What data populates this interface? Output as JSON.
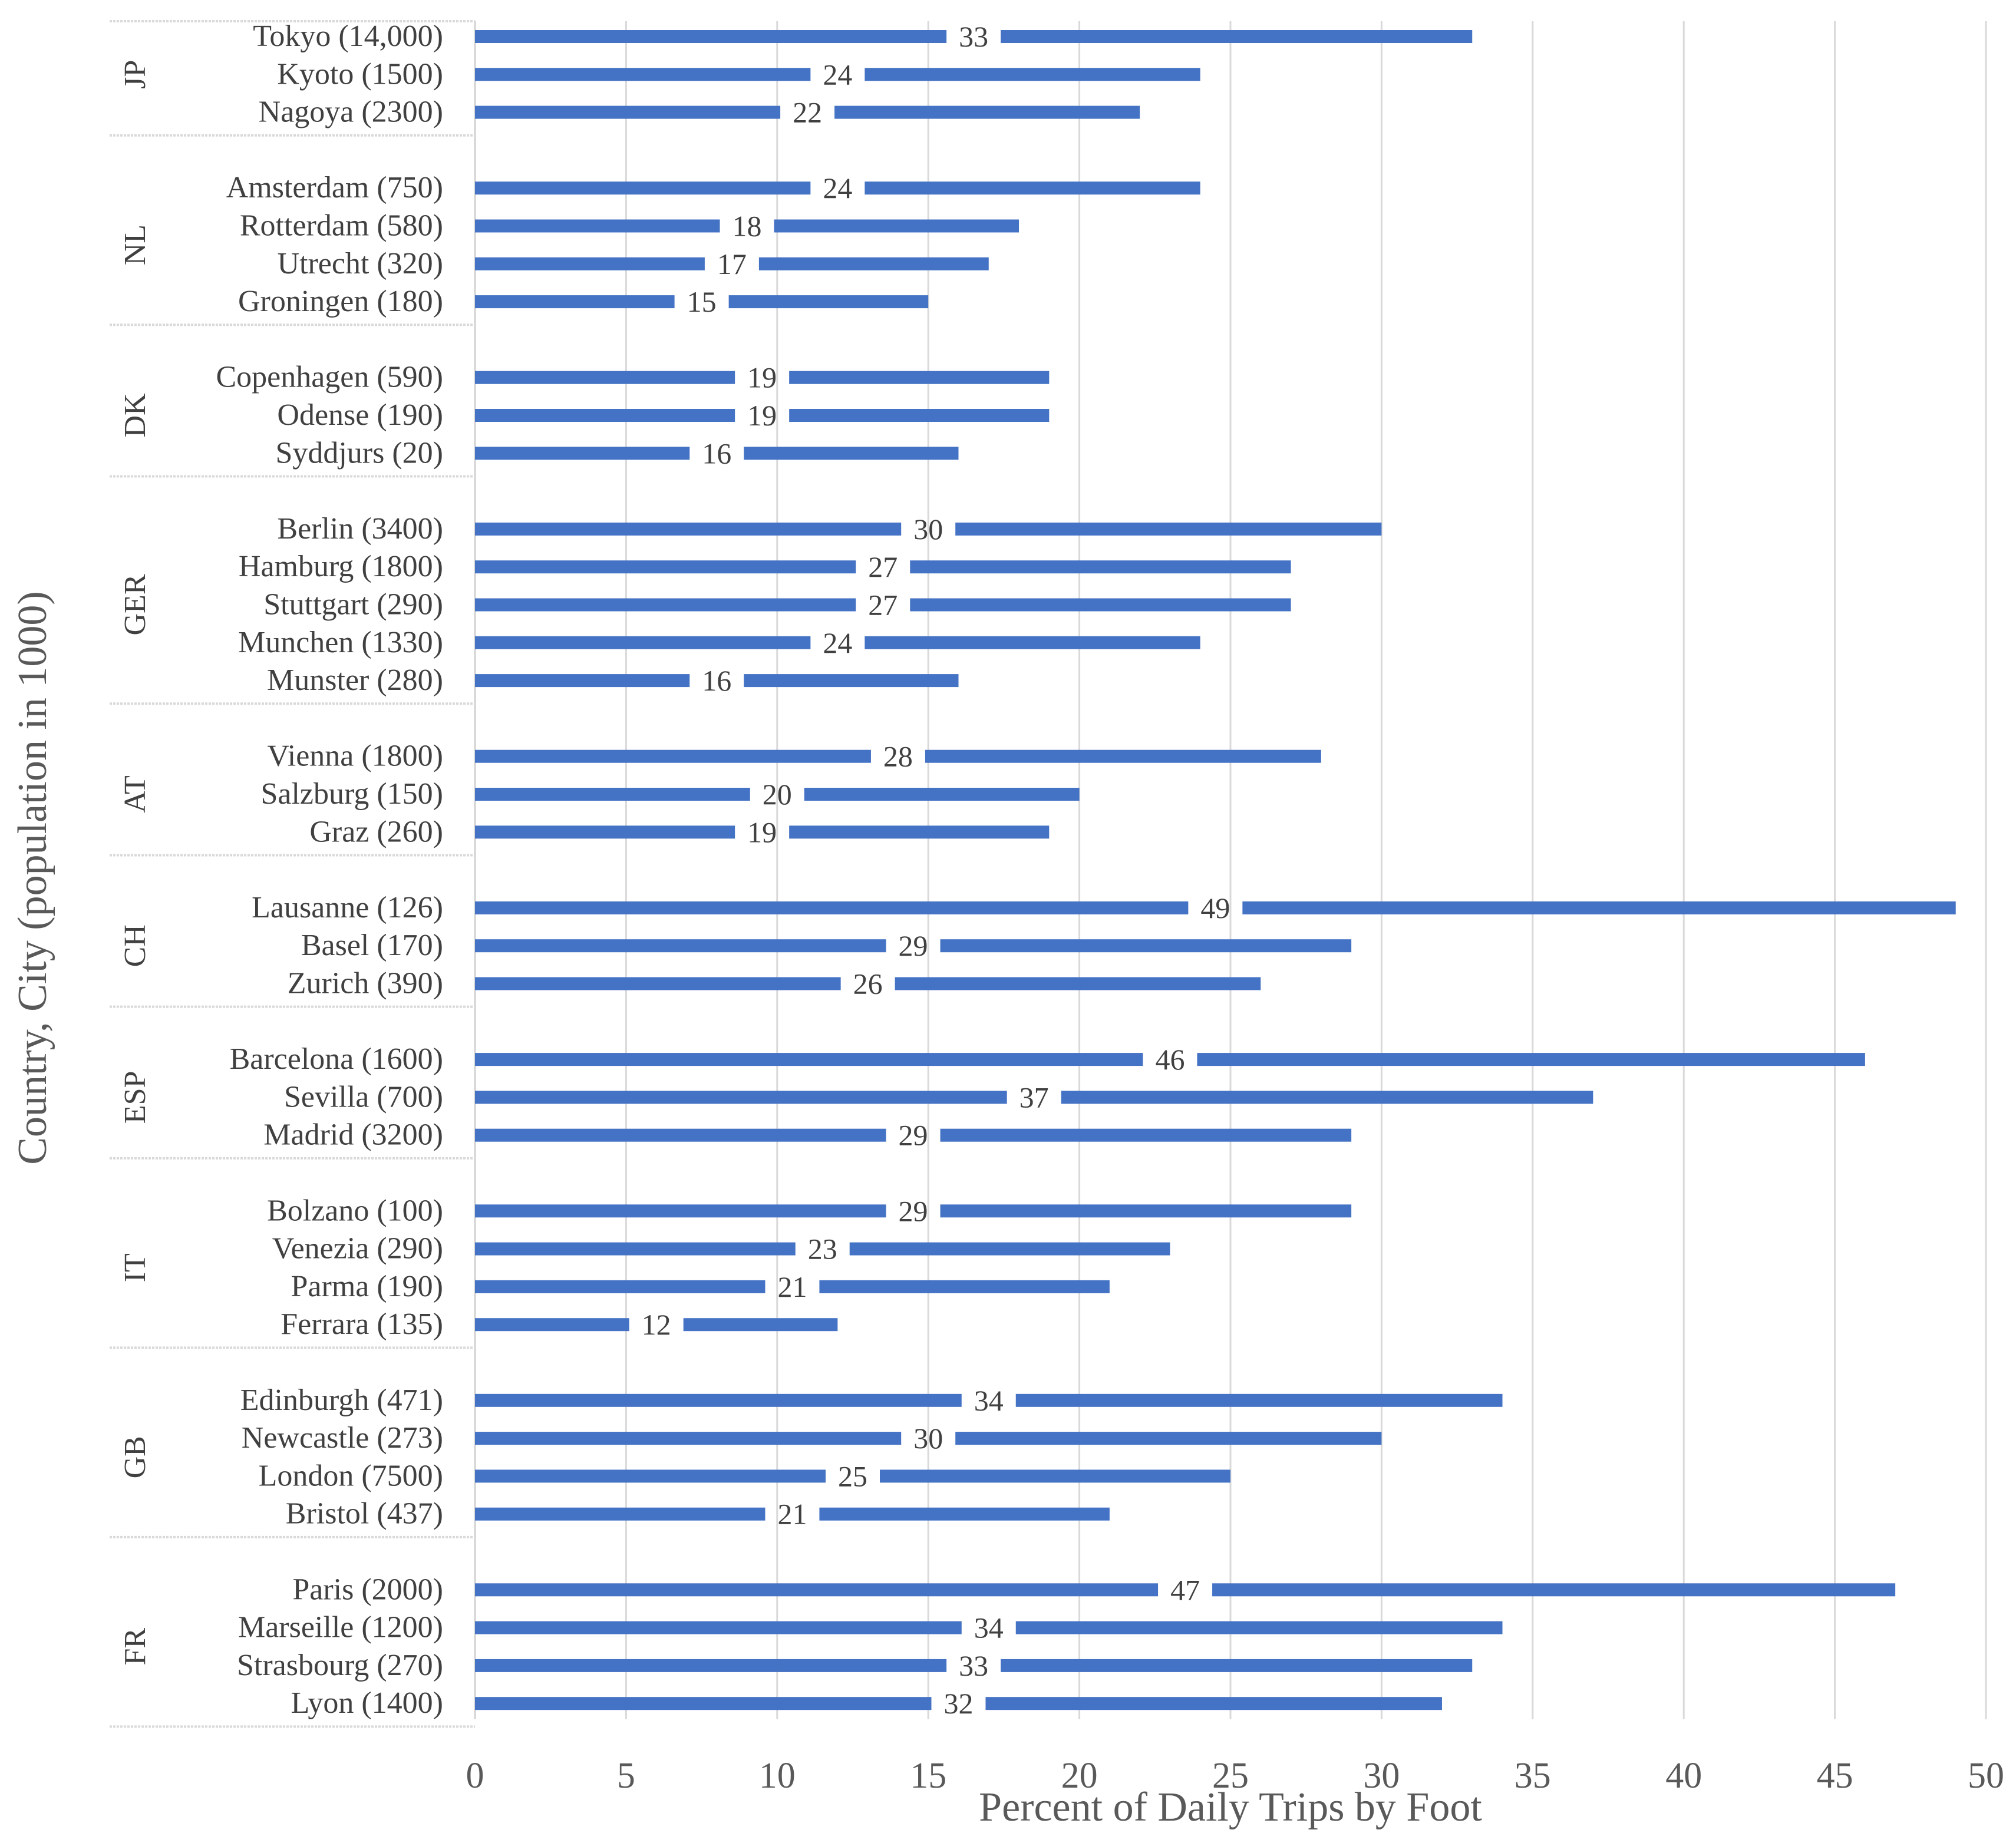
{
  "chart_data": {
    "type": "bar",
    "orientation": "horizontal",
    "xlabel": "Percent of Daily Trips by Foot",
    "ylabel": "Country, City (population in 1000)",
    "xlim": [
      0,
      50
    ],
    "xticks": [
      "0",
      "5",
      "10",
      "15",
      "20",
      "25",
      "30",
      "35",
      "40",
      "45",
      "50"
    ],
    "grid": "vertical",
    "bar_color": "#4472C4",
    "gridline_color": "#D9D9D9",
    "groups": [
      {
        "country": "JP",
        "cities": [
          {
            "label": "Tokyo (14,000)",
            "value": 33
          },
          {
            "label": "Kyoto (1500)",
            "value": 24
          },
          {
            "label": "Nagoya (2300)",
            "value": 22
          }
        ]
      },
      {
        "country": "NL",
        "cities": [
          {
            "label": "Amsterdam (750)",
            "value": 24
          },
          {
            "label": "Rotterdam (580)",
            "value": 18
          },
          {
            "label": "Utrecht (320)",
            "value": 17
          },
          {
            "label": "Groningen (180)",
            "value": 15
          }
        ]
      },
      {
        "country": "DK",
        "cities": [
          {
            "label": "Copenhagen (590)",
            "value": 19
          },
          {
            "label": "Odense (190)",
            "value": 19
          },
          {
            "label": "Syddjurs (20)",
            "value": 16
          }
        ]
      },
      {
        "country": "GER",
        "cities": [
          {
            "label": "Berlin (3400)",
            "value": 30
          },
          {
            "label": "Hamburg (1800)",
            "value": 27
          },
          {
            "label": "Stuttgart (290)",
            "value": 27
          },
          {
            "label": "Munchen (1330)",
            "value": 24
          },
          {
            "label": "Munster (280)",
            "value": 16
          }
        ]
      },
      {
        "country": "AT",
        "cities": [
          {
            "label": "Vienna (1800)",
            "value": 28
          },
          {
            "label": "Salzburg (150)",
            "value": 20
          },
          {
            "label": "Graz (260)",
            "value": 19
          }
        ]
      },
      {
        "country": "CH",
        "cities": [
          {
            "label": "Lausanne (126)",
            "value": 49
          },
          {
            "label": "Basel (170)",
            "value": 29
          },
          {
            "label": "Zurich (390)",
            "value": 26
          }
        ]
      },
      {
        "country": "ESP",
        "cities": [
          {
            "label": "Barcelona (1600)",
            "value": 46
          },
          {
            "label": "Sevilla (700)",
            "value": 37
          },
          {
            "label": "Madrid (3200)",
            "value": 29
          }
        ]
      },
      {
        "country": "IT",
        "cities": [
          {
            "label": "Bolzano (100)",
            "value": 29
          },
          {
            "label": "Venezia (290)",
            "value": 23
          },
          {
            "label": "Parma (190)",
            "value": 21
          },
          {
            "label": "Ferrara (135)",
            "value": 12
          }
        ]
      },
      {
        "country": "GB",
        "cities": [
          {
            "label": "Edinburgh (471)",
            "value": 34
          },
          {
            "label": "Newcastle (273)",
            "value": 30
          },
          {
            "label": "London (7500)",
            "value": 25
          },
          {
            "label": "Bristol (437)",
            "value": 21
          }
        ]
      },
      {
        "country": "FR",
        "cities": [
          {
            "label": "Paris (2000)",
            "value": 47
          },
          {
            "label": "Marseille (1200)",
            "value": 34
          },
          {
            "label": "Strasbourg (270)",
            "value": 33
          },
          {
            "label": "Lyon (1400)",
            "value": 32
          }
        ]
      }
    ]
  }
}
